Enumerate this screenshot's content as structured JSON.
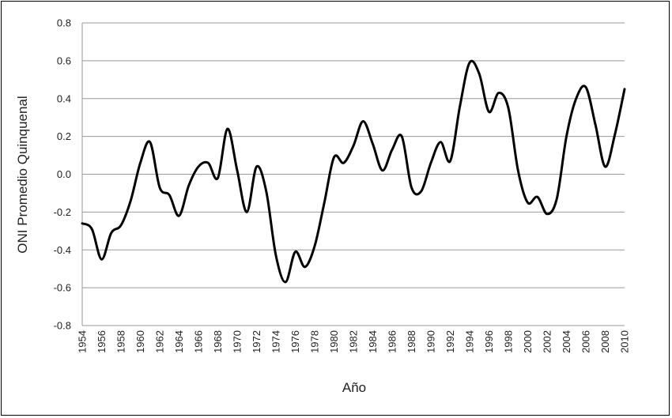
{
  "chart_data": {
    "type": "line",
    "xlabel": "Año",
    "ylabel": "ONI Promedio Quinquenal",
    "xlim": [
      1954,
      2010
    ],
    "ylim": [
      -0.8,
      0.8
    ],
    "y_ticks": [
      "0.8",
      "0.6",
      "0.4",
      "0.2",
      "0.0",
      "-0.2",
      "-0.4",
      "-0.6",
      "-0.8"
    ],
    "x_ticks": [
      "1954",
      "1956",
      "1958",
      "1960",
      "1962",
      "1964",
      "1966",
      "1968",
      "1970",
      "1972",
      "1974",
      "1976",
      "1978",
      "1980",
      "1982",
      "1984",
      "1986",
      "1988",
      "1990",
      "1992",
      "1994",
      "1996",
      "1998",
      "2000",
      "2002",
      "2004",
      "2006",
      "2008",
      "2010"
    ],
    "grid": "horizontal",
    "series": [
      {
        "color": "#000000",
        "x": [
          1954,
          1955,
          1956,
          1957,
          1958,
          1959,
          1960,
          1961,
          1962,
          1963,
          1964,
          1965,
          1966,
          1967,
          1968,
          1969,
          1970,
          1971,
          1972,
          1973,
          1974,
          1975,
          1976,
          1977,
          1978,
          1979,
          1980,
          1981,
          1982,
          1983,
          1984,
          1985,
          1986,
          1987,
          1988,
          1989,
          1990,
          1991,
          1992,
          1993,
          1994,
          1995,
          1996,
          1997,
          1998,
          1999,
          2000,
          2001,
          2002,
          2003,
          2004,
          2005,
          2006,
          2007,
          2008,
          2009,
          2010
        ],
        "values": [
          -0.26,
          -0.29,
          -0.45,
          -0.31,
          -0.27,
          -0.14,
          0.06,
          0.17,
          -0.07,
          -0.11,
          -0.22,
          -0.06,
          0.04,
          0.06,
          -0.02,
          0.24,
          0.02,
          -0.2,
          0.04,
          -0.09,
          -0.43,
          -0.57,
          -0.41,
          -0.49,
          -0.38,
          -0.15,
          0.09,
          0.06,
          0.15,
          0.28,
          0.16,
          0.02,
          0.13,
          0.2,
          -0.07,
          -0.09,
          0.06,
          0.17,
          0.07,
          0.36,
          0.59,
          0.53,
          0.33,
          0.43,
          0.35,
          0.02,
          -0.15,
          -0.12,
          -0.21,
          -0.13,
          0.2,
          0.4,
          0.46,
          0.26,
          0.04,
          0.21,
          0.45
        ]
      }
    ]
  }
}
